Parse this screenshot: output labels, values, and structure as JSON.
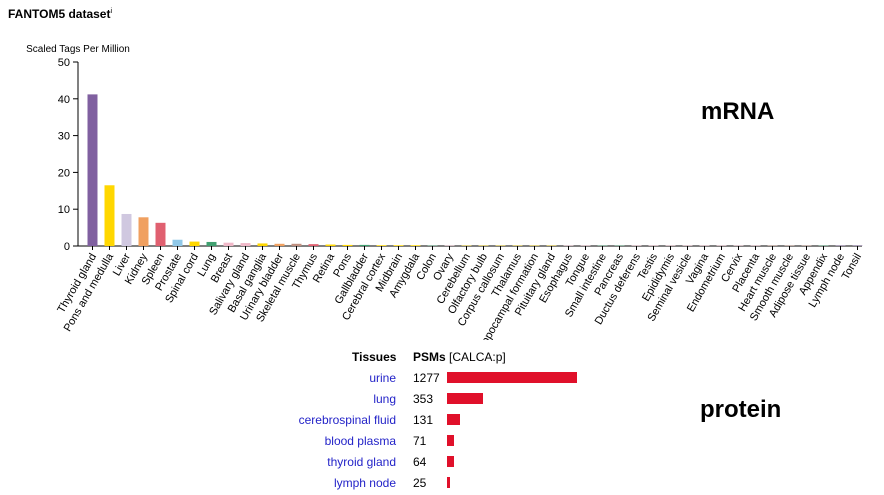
{
  "page": {
    "title": "FANTOM5 dataset",
    "title_sup": "i"
  },
  "labels": {
    "mrna": "mRNA",
    "protein": "protein"
  },
  "chart_data": [
    {
      "type": "bar",
      "title": "FANTOM5 dataset",
      "ylabel": "Scaled Tags Per Million",
      "xlabel": "",
      "ylim": [
        0,
        50
      ],
      "yticks": [
        0,
        10,
        20,
        30,
        40,
        50
      ],
      "grid": false,
      "categories": [
        "Thyroid gland",
        "Pons and medulla",
        "Liver",
        "Kidney",
        "Spleen",
        "Prostate",
        "Spinal cord",
        "Lung",
        "Breast",
        "Salivary gland",
        "Basal ganglia",
        "Urinary bladder",
        "Skeletal muscle",
        "Thymus",
        "Retina",
        "Pons",
        "Gallbladder",
        "Cerebral cortex",
        "Midbrain",
        "Amygdala",
        "Colon",
        "Ovary",
        "Cerebellum",
        "Olfactory bulb",
        "Corpus callosum",
        "Thalamus",
        "Hippocampal formation",
        "Pituitary gland",
        "Esophagus",
        "Tongue",
        "Small intestine",
        "Pancreas",
        "Ductus deferens",
        "Testis",
        "Epididymis",
        "Seminal vesicle",
        "Vagina",
        "Endometrium",
        "Cervix",
        "Placenta",
        "Heart muscle",
        "Smooth muscle",
        "Adipose tissue",
        "Appendix",
        "Lymph node",
        "Tonsil"
      ],
      "values": [
        41.2,
        16.5,
        8.7,
        7.8,
        6.3,
        1.7,
        1.2,
        1.1,
        0.9,
        0.8,
        0.7,
        0.6,
        0.6,
        0.5,
        0.4,
        0.3,
        0.3,
        0.2,
        0.2,
        0.2,
        0.1,
        0.1,
        0.1,
        0.1,
        0.1,
        0.1,
        0.1,
        0.1,
        0.1,
        0.1,
        0.1,
        0.1,
        0.1,
        0.1,
        0.1,
        0.1,
        0.1,
        0.1,
        0.1,
        0.1,
        0.1,
        0.1,
        0.1,
        0.1,
        0.1,
        0.1
      ],
      "colors": [
        "#8060a0",
        "#ffd700",
        "#d0c8e0",
        "#f0a060",
        "#e06070",
        "#90c8e8",
        "#ffd700",
        "#40a070",
        "#f0b8c8",
        "#f0b8c8",
        "#ffd700",
        "#f0a060",
        "#c09080",
        "#e06070",
        "#ffd700",
        "#ffd700",
        "#40a070",
        "#ffd700",
        "#ffd700",
        "#ffd700",
        "#40a070",
        "#f0b8c8",
        "#ffd700",
        "#ffd700",
        "#ffd700",
        "#ffd700",
        "#ffd700",
        "#ffd700",
        "#f0b8c8",
        "#f0b8c8",
        "#40a070",
        "#40a070",
        "#f0b8c8",
        "#f0b8c8",
        "#f0b8c8",
        "#f0b8c8",
        "#f0b8c8",
        "#f0b8c8",
        "#f0b8c8",
        "#f0b8c8",
        "#c09080",
        "#c09080",
        "#c09080",
        "#40a070",
        "#8060a0",
        "#8060a0"
      ]
    },
    {
      "type": "bar",
      "orientation": "horizontal",
      "title": "",
      "headers": {
        "tissues": "Tissues",
        "psms": "PSMs",
        "gene": "[CALCA:p]"
      },
      "categories": [
        "urine",
        "lung",
        "cerebrospinal fluid",
        "blood plasma",
        "thyroid gland",
        "lymph node"
      ],
      "values": [
        1277,
        353,
        131,
        71,
        64,
        25
      ],
      "bar_color": "#e0102a"
    }
  ]
}
